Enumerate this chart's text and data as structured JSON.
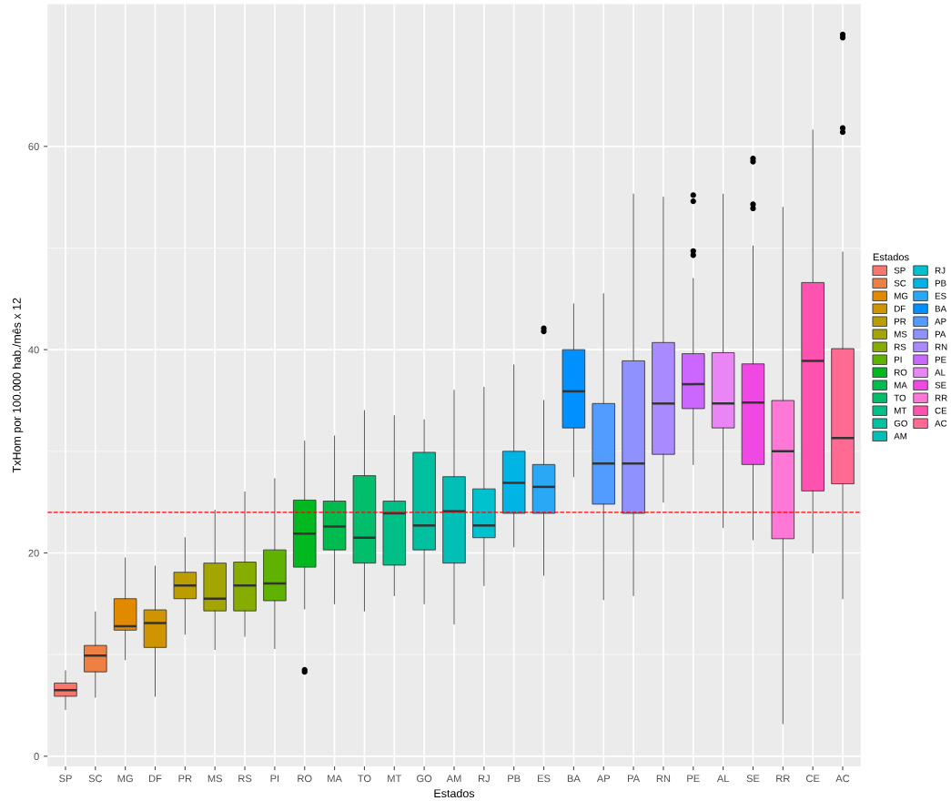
{
  "chart_data": {
    "type": "box",
    "xlabel": "Estados",
    "ylabel": "TxHom por 100.000 hab./mês x 12",
    "legend_title": "Estados",
    "categories": [
      "SP",
      "SC",
      "MG",
      "DF",
      "PR",
      "MS",
      "RS",
      "PI",
      "RO",
      "MA",
      "TO",
      "MT",
      "GO",
      "AM",
      "RJ",
      "PB",
      "ES",
      "BA",
      "AP",
      "PA",
      "RN",
      "PE",
      "AL",
      "SE",
      "RR",
      "CE",
      "AC"
    ],
    "series": [
      {
        "name": "SP",
        "color": "#F8766D",
        "boxes": [
          {
            "low": 4.6,
            "q1": 5.9,
            "median": 6.5,
            "q3": 7.2,
            "high": 8.4
          },
          null,
          null,
          null,
          null,
          null,
          null,
          null,
          null,
          null,
          null,
          null,
          null,
          null,
          null,
          null,
          null,
          null,
          null,
          null,
          null,
          null,
          null,
          null,
          null,
          null,
          null
        ]
      },
      {
        "name": "SC",
        "color": "#EE8044",
        "boxes": [
          null,
          {
            "low": 5.8,
            "q1": 8.3,
            "median": 9.9,
            "q3": 10.9,
            "high": 14.2
          },
          null,
          null,
          null,
          null,
          null,
          null,
          null,
          null,
          null,
          null,
          null,
          null,
          null,
          null,
          null,
          null,
          null,
          null,
          null,
          null,
          null,
          null,
          null,
          null,
          null
        ]
      },
      {
        "name": "MG",
        "color": "#E18A00",
        "boxes": [
          null,
          null,
          {
            "low": 9.5,
            "q1": 12.4,
            "median": 12.8,
            "q3": 15.5,
            "high": 19.5
          },
          null,
          null,
          null,
          null,
          null,
          null,
          null,
          null,
          null,
          null,
          null,
          null,
          null,
          null,
          null,
          null,
          null,
          null,
          null,
          null,
          null,
          null,
          null,
          null
        ]
      },
      {
        "name": "DF",
        "color": "#D09400",
        "boxes": [
          null,
          null,
          null,
          {
            "low": 5.9,
            "q1": 10.7,
            "median": 13.1,
            "q3": 14.4,
            "high": 18.7
          },
          null,
          null,
          null,
          null,
          null,
          null,
          null,
          null,
          null,
          null,
          null,
          null,
          null,
          null,
          null,
          null,
          null,
          null,
          null,
          null,
          null,
          null,
          null
        ]
      },
      {
        "name": "PR",
        "color": "#BC9D00",
        "boxes": [
          null,
          null,
          null,
          null,
          {
            "low": 12,
            "q1": 15.5,
            "median": 16.8,
            "q3": 18.1,
            "high": 21.5
          },
          null,
          null,
          null,
          null,
          null,
          null,
          null,
          null,
          null,
          null,
          null,
          null,
          null,
          null,
          null,
          null,
          null,
          null,
          null,
          null,
          null,
          null
        ]
      },
      {
        "name": "MS",
        "color": "#A3A500",
        "boxes": [
          null,
          null,
          null,
          null,
          null,
          {
            "low": 10.5,
            "q1": 14.3,
            "median": 15.5,
            "q3": 19,
            "high": 24.2
          },
          null,
          null,
          null,
          null,
          null,
          null,
          null,
          null,
          null,
          null,
          null,
          null,
          null,
          null,
          null,
          null,
          null,
          null,
          null,
          null,
          null
        ]
      },
      {
        "name": "RS",
        "color": "#86AC00",
        "boxes": [
          null,
          null,
          null,
          null,
          null,
          null,
          {
            "low": 11.8,
            "q1": 14.3,
            "median": 16.8,
            "q3": 19.1,
            "high": 26
          },
          null,
          null,
          null,
          null,
          null,
          null,
          null,
          null,
          null,
          null,
          null,
          null,
          null,
          null,
          null,
          null,
          null,
          null,
          null,
          null
        ]
      },
      {
        "name": "PI",
        "color": "#5FB200",
        "boxes": [
          null,
          null,
          null,
          null,
          null,
          null,
          null,
          {
            "low": 10.6,
            "q1": 15.3,
            "median": 17,
            "q3": 20.3,
            "high": 27.3
          },
          null,
          null,
          null,
          null,
          null,
          null,
          null,
          null,
          null,
          null,
          null,
          null,
          null,
          null,
          null,
          null,
          null,
          null,
          null
        ]
      },
      {
        "name": "RO",
        "color": "#00B81F",
        "boxes": [
          null,
          null,
          null,
          null,
          null,
          null,
          null,
          null,
          {
            "low": 14.5,
            "q1": 18.6,
            "median": 21.9,
            "q3": 25.2,
            "high": 31,
            "outliers": [
              8.5,
              8.3
            ]
          },
          null,
          null,
          null,
          null,
          null,
          null,
          null,
          null,
          null,
          null,
          null,
          null,
          null,
          null,
          null,
          null,
          null,
          null
        ]
      },
      {
        "name": "MA",
        "color": "#00BB4E",
        "boxes": [
          null,
          null,
          null,
          null,
          null,
          null,
          null,
          null,
          null,
          {
            "low": 15,
            "q1": 20.3,
            "median": 22.6,
            "q3": 25.1,
            "high": 31.5
          },
          null,
          null,
          null,
          null,
          null,
          null,
          null,
          null,
          null,
          null,
          null,
          null,
          null,
          null,
          null,
          null,
          null
        ]
      },
      {
        "name": "TO",
        "color": "#00BE6C",
        "boxes": [
          null,
          null,
          null,
          null,
          null,
          null,
          null,
          null,
          null,
          null,
          {
            "low": 14.3,
            "q1": 19,
            "median": 21.5,
            "q3": 27.6,
            "high": 34
          },
          null,
          null,
          null,
          null,
          null,
          null,
          null,
          null,
          null,
          null,
          null,
          null,
          null,
          null,
          null,
          null
        ]
      },
      {
        "name": "MT",
        "color": "#00C087",
        "boxes": [
          null,
          null,
          null,
          null,
          null,
          null,
          null,
          null,
          null,
          null,
          null,
          {
            "low": 15.8,
            "q1": 18.8,
            "median": 23.9,
            "q3": 25.1,
            "high": 33.5
          },
          null,
          null,
          null,
          null,
          null,
          null,
          null,
          null,
          null,
          null,
          null,
          null,
          null,
          null,
          null
        ]
      },
      {
        "name": "GO",
        "color": "#00C0A0",
        "boxes": [
          null,
          null,
          null,
          null,
          null,
          null,
          null,
          null,
          null,
          null,
          null,
          null,
          {
            "low": 15,
            "q1": 20.3,
            "median": 22.7,
            "q3": 29.9,
            "high": 33.1
          },
          null,
          null,
          null,
          null,
          null,
          null,
          null,
          null,
          null,
          null,
          null,
          null,
          null,
          null
        ]
      },
      {
        "name": "AM",
        "color": "#00BFB7",
        "boxes": [
          null,
          null,
          null,
          null,
          null,
          null,
          null,
          null,
          null,
          null,
          null,
          null,
          null,
          {
            "low": 13,
            "q1": 19,
            "median": 24.1,
            "q3": 27.5,
            "high": 36
          },
          null,
          null,
          null,
          null,
          null,
          null,
          null,
          null,
          null,
          null,
          null,
          null,
          null
        ]
      },
      {
        "name": "RJ",
        "color": "#00C2CF",
        "boxes": [
          null,
          null,
          null,
          null,
          null,
          null,
          null,
          null,
          null,
          null,
          null,
          null,
          null,
          null,
          {
            "low": 16.8,
            "q1": 21.5,
            "median": 22.7,
            "q3": 26.3,
            "high": 36.3
          },
          null,
          null,
          null,
          null,
          null,
          null,
          null,
          null,
          null,
          null,
          null,
          null
        ]
      },
      {
        "name": "PB",
        "color": "#00B4E6",
        "boxes": [
          null,
          null,
          null,
          null,
          null,
          null,
          null,
          null,
          null,
          null,
          null,
          null,
          null,
          null,
          null,
          {
            "low": 20.6,
            "q1": 23.9,
            "median": 26.9,
            "q3": 30,
            "high": 38.5
          },
          null,
          null,
          null,
          null,
          null,
          null,
          null,
          null,
          null,
          null,
          null
        ]
      },
      {
        "name": "ES",
        "color": "#2AA8F6",
        "boxes": [
          null,
          null,
          null,
          null,
          null,
          null,
          null,
          null,
          null,
          null,
          null,
          null,
          null,
          null,
          null,
          null,
          {
            "low": 17.8,
            "q1": 23.9,
            "median": 26.5,
            "q3": 28.7,
            "high": 35,
            "outliers": [
              42.1,
              41.8
            ]
          },
          null,
          null,
          null,
          null,
          null,
          null,
          null,
          null,
          null,
          null
        ]
      },
      {
        "name": "BA",
        "color": "#0090FF",
        "boxes": [
          null,
          null,
          null,
          null,
          null,
          null,
          null,
          null,
          null,
          null,
          null,
          null,
          null,
          null,
          null,
          null,
          null,
          {
            "low": 27.5,
            "q1": 32.3,
            "median": 35.9,
            "q3": 40,
            "high": 44.5
          },
          null,
          null,
          null,
          null,
          null,
          null,
          null,
          null,
          null
        ]
      },
      {
        "name": "AP",
        "color": "#529BFF",
        "boxes": [
          null,
          null,
          null,
          null,
          null,
          null,
          null,
          null,
          null,
          null,
          null,
          null,
          null,
          null,
          null,
          null,
          null,
          null,
          {
            "low": 15.4,
            "q1": 24.8,
            "median": 28.8,
            "q3": 34.7,
            "high": 45.5
          },
          null,
          null,
          null,
          null,
          null,
          null,
          null,
          null
        ]
      },
      {
        "name": "PA",
        "color": "#8F91FF",
        "boxes": [
          null,
          null,
          null,
          null,
          null,
          null,
          null,
          null,
          null,
          null,
          null,
          null,
          null,
          null,
          null,
          null,
          null,
          null,
          null,
          {
            "low": 15.8,
            "q1": 23.9,
            "median": 28.8,
            "q3": 38.9,
            "high": 55.3
          },
          null,
          null,
          null,
          null,
          null,
          null,
          null
        ]
      },
      {
        "name": "RN",
        "color": "#A98AFF",
        "boxes": [
          null,
          null,
          null,
          null,
          null,
          null,
          null,
          null,
          null,
          null,
          null,
          null,
          null,
          null,
          null,
          null,
          null,
          null,
          null,
          null,
          {
            "low": 25,
            "q1": 29.7,
            "median": 34.7,
            "q3": 40.7,
            "high": 55
          },
          null,
          null,
          null,
          null,
          null,
          null
        ]
      },
      {
        "name": "PE",
        "color": "#CB66FF",
        "boxes": [
          null,
          null,
          null,
          null,
          null,
          null,
          null,
          null,
          null,
          null,
          null,
          null,
          null,
          null,
          null,
          null,
          null,
          null,
          null,
          null,
          null,
          {
            "low": 28.7,
            "q1": 34.2,
            "median": 36.6,
            "q3": 39.6,
            "high": 47,
            "outliers": [
              55.2,
              54.6,
              49.7,
              49.3
            ]
          },
          null,
          null,
          null,
          null,
          null
        ]
      },
      {
        "name": "AL",
        "color": "#EA85F6",
        "boxes": [
          null,
          null,
          null,
          null,
          null,
          null,
          null,
          null,
          null,
          null,
          null,
          null,
          null,
          null,
          null,
          null,
          null,
          null,
          null,
          null,
          null,
          null,
          {
            "low": 22.5,
            "q1": 32.3,
            "median": 34.7,
            "q3": 39.7,
            "high": 55.3
          },
          null,
          null,
          null,
          null
        ]
      },
      {
        "name": "SE",
        "color": "#F048E2",
        "boxes": [
          null,
          null,
          null,
          null,
          null,
          null,
          null,
          null,
          null,
          null,
          null,
          null,
          null,
          null,
          null,
          null,
          null,
          null,
          null,
          null,
          null,
          null,
          null,
          {
            "low": 21.3,
            "q1": 28.7,
            "median": 34.8,
            "q3": 38.6,
            "high": 50.2,
            "outliers": [
              58.8,
              58.5,
              54.3,
              53.9
            ]
          },
          null,
          null,
          null
        ]
      },
      {
        "name": "RR",
        "color": "#FF78D6",
        "boxes": [
          null,
          null,
          null,
          null,
          null,
          null,
          null,
          null,
          null,
          null,
          null,
          null,
          null,
          null,
          null,
          null,
          null,
          null,
          null,
          null,
          null,
          null,
          null,
          null,
          {
            "low": 3.2,
            "q1": 21.4,
            "median": 30,
            "q3": 35,
            "high": 54
          },
          null,
          null
        ]
      },
      {
        "name": "CE",
        "color": "#FF52B0",
        "boxes": [
          null,
          null,
          null,
          null,
          null,
          null,
          null,
          null,
          null,
          null,
          null,
          null,
          null,
          null,
          null,
          null,
          null,
          null,
          null,
          null,
          null,
          null,
          null,
          null,
          null,
          {
            "low": 20,
            "q1": 26.1,
            "median": 38.9,
            "q3": 46.6,
            "high": 61.6
          },
          null
        ]
      },
      {
        "name": "AC",
        "color": "#FF6A92",
        "boxes": [
          null,
          null,
          null,
          null,
          null,
          null,
          null,
          null,
          null,
          null,
          null,
          null,
          null,
          null,
          null,
          null,
          null,
          null,
          null,
          null,
          null,
          null,
          null,
          null,
          null,
          null,
          {
            "low": 15.5,
            "q1": 26.8,
            "median": 31.3,
            "q3": 40.1,
            "high": 49.6,
            "outliers": [
              71,
              70.7,
              61.8,
              61.4
            ]
          }
        ]
      }
    ],
    "ylim": [
      -1,
      74
    ],
    "yticks": [
      0,
      20,
      40,
      60
    ],
    "grid": true,
    "legend": "right",
    "ref_lines": [
      {
        "axis": "y",
        "value": 24,
        "color": "#ff0000",
        "line_style": "dashed"
      }
    ]
  }
}
